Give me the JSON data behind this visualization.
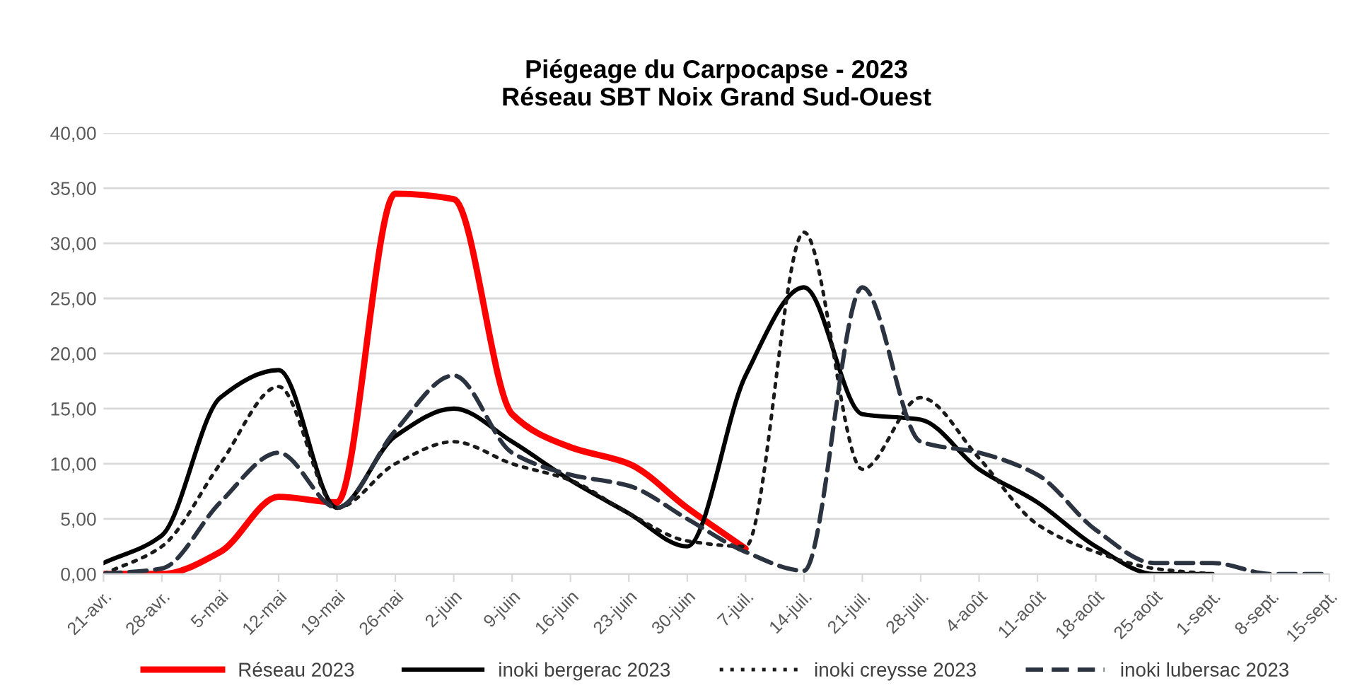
{
  "chart_data": {
    "type": "line",
    "title": "Piégeage du Carpocapse - 2023\nRéseau SBT Noix Grand Sud-Ouest",
    "categories": [
      "21-avr.",
      "28-avr.",
      "5-mai",
      "12-mai",
      "19-mai",
      "26-mai",
      "2-juin",
      "9-juin",
      "16-juin",
      "23-juin",
      "30-juin",
      "7-juil.",
      "14-juil.",
      "21-juil.",
      "28-juil.",
      "4-août",
      "11-août",
      "18-août",
      "25-août",
      "1-sept.",
      "8-sept.",
      "15-sept."
    ],
    "series": [
      {
        "name": "Réseau 2023",
        "color": "#ff0000",
        "line_style": "solid",
        "values": [
          0,
          0,
          2,
          7,
          6.5,
          34.5,
          34,
          14.5,
          11.5,
          10,
          6,
          2.3,
          null,
          null,
          null,
          null,
          null,
          null,
          null,
          null,
          null,
          null
        ]
      },
      {
        "name": "inoki bergerac 2023",
        "color": "#000000",
        "line_style": "solid",
        "values": [
          1,
          3.5,
          16,
          18.5,
          6,
          12.5,
          15,
          12,
          8.5,
          5.5,
          2.5,
          18,
          26,
          14.5,
          14,
          9.5,
          6.5,
          2.5,
          0,
          0,
          null,
          null
        ]
      },
      {
        "name": "inoki creysse 2023",
        "color": "#1a1a1a",
        "line_style": "dotted",
        "values": [
          0,
          2.5,
          10,
          17,
          6,
          10,
          12,
          10,
          8.5,
          5.5,
          3,
          2.5,
          31,
          9.5,
          16,
          10.5,
          4.5,
          2,
          0.5,
          0,
          null,
          null
        ]
      },
      {
        "name": "inoki lubersac 2023",
        "color": "#2b3340",
        "line_style": "dashed",
        "values": [
          0,
          0.5,
          6.5,
          11,
          6,
          13,
          18,
          11,
          9,
          8,
          5,
          2,
          0.3,
          26,
          12,
          11,
          9,
          4,
          1,
          1,
          0,
          0
        ]
      }
    ],
    "ylim": [
      0,
      40
    ],
    "yticks": [
      {
        "value": 0,
        "label": "0,00"
      },
      {
        "value": 5,
        "label": "5,00"
      },
      {
        "value": 10,
        "label": "10,00"
      },
      {
        "value": 15,
        "label": "15,00"
      },
      {
        "value": 20,
        "label": "20,00"
      },
      {
        "value": 25,
        "label": "25,00"
      },
      {
        "value": 30,
        "label": "30,00"
      },
      {
        "value": 35,
        "label": "35,00"
      },
      {
        "value": 40,
        "label": "40,00"
      }
    ],
    "grid": "y",
    "legend": "bottom",
    "marker": "none"
  }
}
